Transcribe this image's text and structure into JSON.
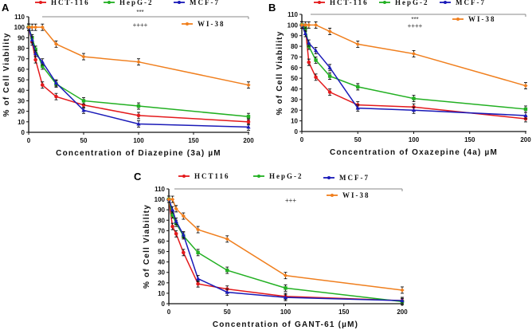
{
  "chart_data": [
    {
      "panel": "A",
      "type": "line",
      "xlabel": "Concentration of Diazepine (3a) µM",
      "ylabel": "% of Cell Viability",
      "xlim": [
        0,
        200
      ],
      "ylim": [
        0,
        110
      ],
      "xticks": [
        0,
        50,
        100,
        150,
        200
      ],
      "yticks": [
        0,
        10,
        20,
        30,
        40,
        50,
        60,
        70,
        80,
        90,
        100,
        110
      ],
      "x": [
        0,
        3.125,
        6.25,
        12.5,
        25,
        50,
        100,
        200
      ],
      "significance": [
        "***",
        "++++"
      ],
      "legend_position": "top",
      "series": [
        {
          "name": "HCT-116",
          "color": "#e41a1c",
          "marker": "circle",
          "values": [
            100,
            86,
            69,
            45,
            34,
            26,
            16,
            10
          ]
        },
        {
          "name": "HepG-2",
          "color": "#22b022",
          "marker": "square",
          "values": [
            100,
            90,
            79,
            63,
            46,
            30,
            25,
            15
          ]
        },
        {
          "name": "MCF-7",
          "color": "#1a1ab8",
          "marker": "triangle",
          "values": [
            100,
            88,
            75,
            67,
            47,
            21,
            8,
            5
          ]
        },
        {
          "name": "WI-38",
          "color": "#f07f1e",
          "marker": "diamond",
          "values": [
            100,
            100,
            100,
            100,
            84,
            72,
            67,
            45
          ]
        }
      ]
    },
    {
      "panel": "B",
      "type": "line",
      "xlabel": "Concentration of Oxazepine (4a) µM",
      "ylabel": "% of Cell Viability",
      "xlim": [
        0,
        200
      ],
      "ylim": [
        0,
        110
      ],
      "xticks": [
        0,
        50,
        100,
        150,
        200
      ],
      "yticks": [
        0,
        10,
        20,
        30,
        40,
        50,
        60,
        70,
        80,
        90,
        100,
        110
      ],
      "x": [
        0,
        3.125,
        6.25,
        12.5,
        25,
        50,
        100,
        200
      ],
      "significance": [
        "***",
        "++++"
      ],
      "legend_position": "top",
      "series": [
        {
          "name": "HCT-116",
          "color": "#e41a1c",
          "marker": "circle",
          "values": [
            100,
            98,
            65,
            51,
            37,
            25,
            23,
            12
          ]
        },
        {
          "name": "HepG-2",
          "color": "#22b022",
          "marker": "square",
          "values": [
            100,
            97,
            80,
            67,
            52,
            42,
            31,
            21
          ]
        },
        {
          "name": "MCF-7",
          "color": "#1a1ab8",
          "marker": "triangle",
          "values": [
            100,
            92,
            83,
            76,
            60,
            22,
            20,
            15
          ]
        },
        {
          "name": "WI-38",
          "color": "#f07f1e",
          "marker": "diamond",
          "values": [
            100,
            100,
            100,
            100,
            94,
            82,
            73,
            43
          ]
        }
      ]
    },
    {
      "panel": "C",
      "type": "line",
      "xlabel": "Concentration of GANT-61 (µM)",
      "ylabel": "% of Cell Viability",
      "xlim": [
        0,
        200
      ],
      "ylim": [
        0,
        110
      ],
      "xticks": [
        0,
        50,
        100,
        150,
        200
      ],
      "yticks": [
        0,
        10,
        20,
        30,
        40,
        50,
        60,
        70,
        80,
        90,
        100,
        110
      ],
      "x": [
        0,
        3.125,
        6.25,
        12.5,
        25,
        50,
        100,
        200
      ],
      "significance": [
        "+++"
      ],
      "legend_position": "top",
      "series": [
        {
          "name": "HCT116",
          "color": "#e41a1c",
          "marker": "circle",
          "values": [
            100,
            74,
            67,
            49,
            19,
            14,
            7,
            3
          ]
        },
        {
          "name": "HepG-2",
          "color": "#22b022",
          "marker": "square",
          "values": [
            100,
            85,
            77,
            65,
            49,
            32,
            15,
            2
          ]
        },
        {
          "name": "MCF-7",
          "color": "#1a1ab8",
          "marker": "triangle",
          "values": [
            100,
            90,
            79,
            66,
            24,
            11,
            6,
            3
          ]
        },
        {
          "name": "WI-38",
          "color": "#f07f1e",
          "marker": "diamond",
          "values": [
            100,
            100,
            91,
            84,
            71,
            62,
            27,
            13
          ]
        }
      ]
    }
  ]
}
